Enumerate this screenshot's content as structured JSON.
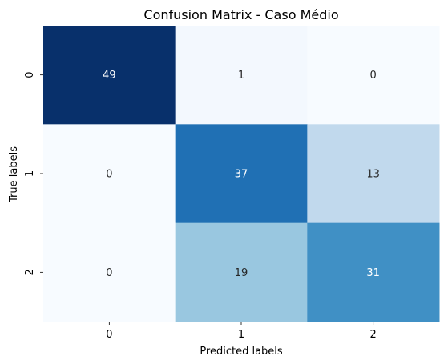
{
  "chart_data": {
    "type": "heatmap",
    "title": "Confusion Matrix - Caso Médio",
    "xlabel": "Predicted labels",
    "ylabel": "True labels",
    "x_categories": [
      "0",
      "1",
      "2"
    ],
    "y_categories": [
      "0",
      "1",
      "2"
    ],
    "values": [
      [
        49,
        1,
        0
      ],
      [
        0,
        37,
        13
      ],
      [
        0,
        19,
        31
      ]
    ],
    "colormap": "Blues",
    "vmin": 0,
    "vmax": 49,
    "colorbar": false,
    "grid": false,
    "colors": {
      "low": "#f7fbff",
      "high": "#08306b",
      "text_on_light": "#262626",
      "text_on_dark": "#ffffff"
    }
  }
}
